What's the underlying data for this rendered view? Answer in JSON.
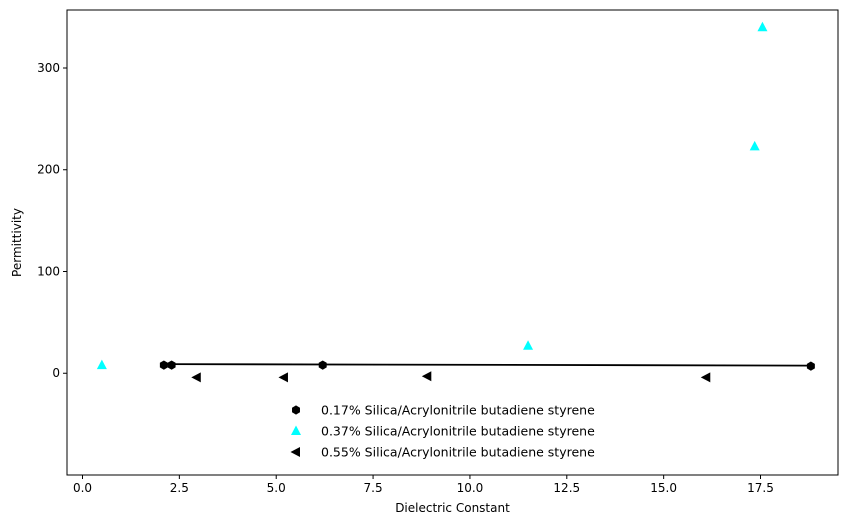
{
  "chart_data": {
    "type": "scatter",
    "title": "",
    "xlabel": "Dielectric Constant",
    "ylabel": "Permittivity",
    "xlim": [
      -0.4,
      19.5
    ],
    "ylim": [
      -100,
      357
    ],
    "xticks": [
      0.0,
      2.5,
      5.0,
      7.5,
      10.0,
      12.5,
      15.0,
      17.5
    ],
    "xtick_labels": [
      "0.0",
      "2.5",
      "5.0",
      "7.5",
      "10.0",
      "12.5",
      "15.0",
      "17.5"
    ],
    "yticks": [
      0,
      100,
      200,
      300
    ],
    "ytick_labels": [
      "0",
      "100",
      "200",
      "300"
    ],
    "grid": false,
    "legend_position": "bottom-center",
    "series": [
      {
        "name": "0.17% Silica/Acrylonitrile butadiene styrene",
        "marker": "hexagon",
        "color": "#000000",
        "x": [
          2.1,
          2.3,
          6.2,
          18.8
        ],
        "y": [
          8,
          8,
          8,
          7
        ]
      },
      {
        "name": "0.37% Silica/Acrylonitrile butadiene styrene",
        "marker": "triangle-up",
        "color": "#00ffff",
        "x": [
          0.5,
          11.5,
          17.35,
          17.55
        ],
        "y": [
          8,
          27,
          223,
          340
        ]
      },
      {
        "name": "0.55% Silica/Acrylonitrile butadiene styrene",
        "marker": "triangle-left",
        "color": "#000000",
        "x": [
          2.95,
          5.2,
          8.9,
          16.1
        ],
        "y": [
          -4,
          -4,
          -3,
          -4
        ]
      }
    ],
    "fit_line": {
      "color": "#000000",
      "x": [
        2.1,
        18.8
      ],
      "y": [
        9,
        7.5
      ]
    }
  }
}
